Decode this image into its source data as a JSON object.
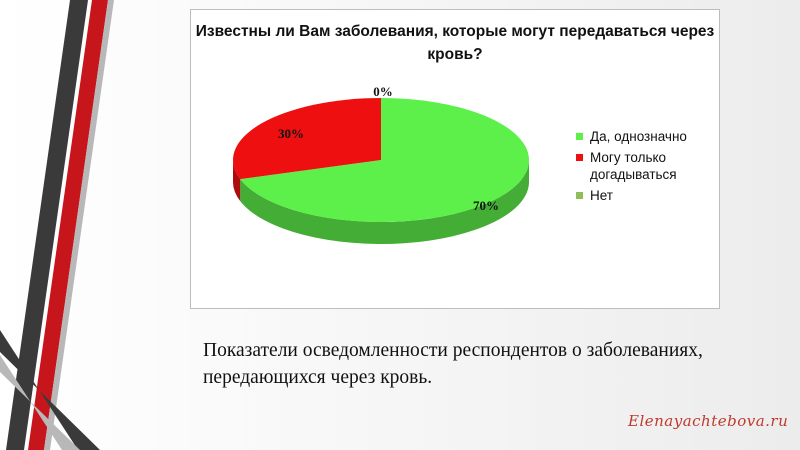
{
  "chart_data": {
    "type": "pie",
    "title": "Известны  ли Вам заболевания, которые могут передаваться через кровь?",
    "categories": [
      "Да, однозначно",
      "Могу только догадываться",
      "Нет"
    ],
    "values": [
      70,
      30,
      0
    ],
    "data_labels": [
      "70%",
      "30%",
      "0%"
    ],
    "colors": [
      "#5ef04a",
      "#ee1010",
      "#8fbf5a"
    ],
    "legend_position": "right",
    "three_d": true
  },
  "caption": "Показатели осведомленности респондентов о заболеваниях, передающихся через кровь.",
  "watermark": "Elenayachtebova.ru"
}
